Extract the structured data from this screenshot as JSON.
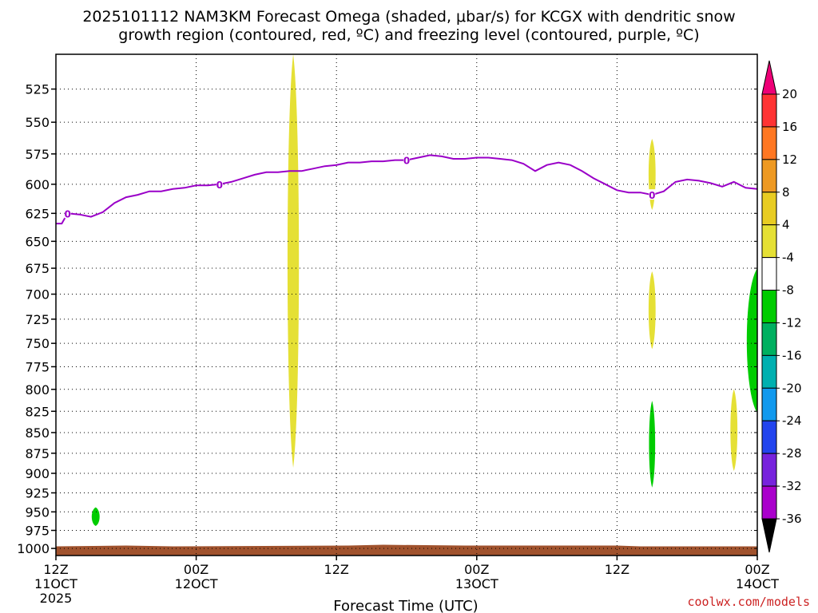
{
  "chart_data": {
    "type": "heatmap",
    "title_line1": "2025101112 NAM3KM Forecast Omega (shaded, μbar/s) for KCGX with dendritic snow",
    "title_line2": "growth region (contoured, red, ºC) and freezing level (contoured, purple, ºC)",
    "xlabel": "Forecast Time (UTC)",
    "credit": "coolwx.com/models",
    "y_ticks": [
      525,
      550,
      575,
      600,
      625,
      650,
      675,
      700,
      725,
      750,
      775,
      800,
      825,
      850,
      875,
      900,
      925,
      950,
      975,
      1000
    ],
    "y_range": [
      500,
      1010
    ],
    "y_scale": "log",
    "x_range_hours": [
      0,
      60
    ],
    "x_ticks": [
      {
        "hour": 0,
        "line1": "12Z",
        "line2": "11OCT",
        "line3": "2025"
      },
      {
        "hour": 12,
        "line1": "00Z",
        "line2": "12OCT",
        "line3": ""
      },
      {
        "hour": 24,
        "line1": "12Z",
        "line2": "",
        "line3": ""
      },
      {
        "hour": 36,
        "line1": "00Z",
        "line2": "13OCT",
        "line3": ""
      },
      {
        "hour": 48,
        "line1": "12Z",
        "line2": "",
        "line3": ""
      },
      {
        "hour": 60,
        "line1": "00Z",
        "line2": "14OCT",
        "line3": ""
      }
    ],
    "grid": true,
    "colorbar": {
      "levels": [
        "20",
        "16",
        "12",
        "8",
        "4",
        "-4",
        "-8",
        "-12",
        "-16",
        "-20",
        "-24",
        "-28",
        "-32",
        "-36"
      ],
      "colors": [
        "#ee0077",
        "#ff3333",
        "#ff7722",
        "#ee9922",
        "#e8cc22",
        "#e5e035",
        "#ffffff",
        "#00cc00",
        "#00b060",
        "#00b0b0",
        "#1199ee",
        "#2244ee",
        "#7722dd",
        "#aa00cc",
        "#aaaaaa",
        "#000000"
      ]
    },
    "freezing_level": {
      "label": "0",
      "color": "#9a00c8",
      "hours": [
        0,
        0.5,
        1,
        2,
        3,
        4,
        5,
        6,
        7,
        8,
        9,
        10,
        11,
        12,
        13,
        14,
        15,
        16,
        17,
        18,
        19,
        20,
        21,
        22,
        23,
        24,
        25,
        26,
        27,
        28,
        29,
        30,
        31,
        32,
        33,
        34,
        35,
        36,
        37,
        38,
        39,
        40,
        41,
        42,
        43,
        44,
        45,
        46,
        47,
        48,
        49,
        50,
        51,
        52,
        53,
        54,
        55,
        56,
        57,
        58,
        59,
        60
      ],
      "pressure": [
        634,
        634,
        625,
        626,
        628,
        624,
        616,
        611,
        609,
        606,
        606,
        604,
        603,
        601,
        601,
        600,
        598,
        595,
        592,
        590,
        590,
        589,
        589,
        587,
        585,
        584,
        582,
        582,
        581,
        581,
        580,
        580,
        578,
        576,
        577,
        579,
        579,
        578,
        578,
        579,
        580,
        583,
        589,
        584,
        582,
        584,
        589,
        595,
        600,
        605,
        607,
        607,
        609,
        606,
        598,
        596,
        597,
        599,
        602,
        598,
        603,
        604
      ]
    },
    "omega_areas": [
      {
        "name": "yellow-plume-1",
        "value": "4 to 8",
        "color": "#e5e035",
        "hour_center": 20.3,
        "half_width_h": 0.65,
        "p_top": 500,
        "p_bottom": 893
      },
      {
        "name": "yellow-blob-925",
        "value": "4 to 8",
        "color": "#e5e035",
        "hour_center": 51.0,
        "half_width_h": 0.4,
        "p_top": 563,
        "p_bottom": 622
      },
      {
        "name": "yellow-blob-720",
        "value": "4 to 8",
        "color": "#e5e035",
        "hour_center": 51.0,
        "half_width_h": 0.4,
        "p_top": 678,
        "p_bottom": 756
      },
      {
        "name": "yellow-blob-850",
        "value": "4 to 8",
        "color": "#e5e035",
        "hour_center": 58.0,
        "half_width_h": 0.4,
        "p_top": 800,
        "p_bottom": 897
      },
      {
        "name": "green-blob-850",
        "value": "-4 to -8",
        "color": "#00cc00",
        "hour_center": 51.0,
        "half_width_h": 0.35,
        "p_top": 813,
        "p_bottom": 918
      },
      {
        "name": "green-blob-955",
        "value": "-4 to -8",
        "color": "#00cc00",
        "hour_center": 3.4,
        "half_width_h": 0.45,
        "p_top": 944,
        "p_bottom": 969
      },
      {
        "name": "green-edge-right",
        "value": "-4 to -8",
        "color": "#00cc00",
        "hour_center": 60.0,
        "half_width_h": 1.2,
        "p_top": 675,
        "p_bottom": 827
      }
    ],
    "terrain": {
      "color": "#a0522d",
      "surface_pressure": 996
    }
  }
}
